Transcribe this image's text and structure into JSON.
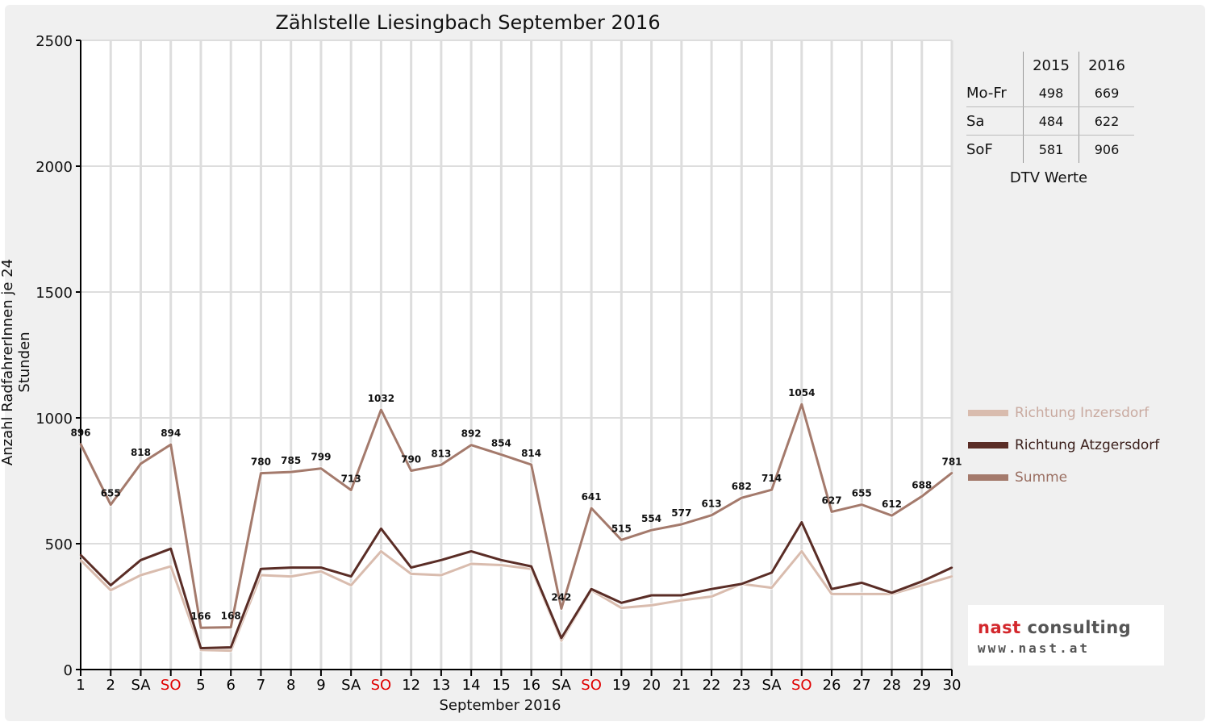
{
  "chart_data": {
    "type": "line",
    "title": "Zählstelle Liesingbach September 2016",
    "xlabel": "September 2016",
    "ylabel": "Anzahl RadfahrerInnen je 24 Stunden",
    "ylim": [
      0,
      2500
    ],
    "yticks": [
      "0",
      "500",
      "1000",
      "1500",
      "2000",
      "2500"
    ],
    "grid": true,
    "categories": [
      "1",
      "2",
      "SA",
      "SO",
      "5",
      "6",
      "7",
      "8",
      "9",
      "SA",
      "SO",
      "12",
      "13",
      "14",
      "15",
      "16",
      "SA",
      "SO",
      "19",
      "20",
      "21",
      "22",
      "23",
      "SA",
      "SO",
      "26",
      "27",
      "28",
      "29",
      "30"
    ],
    "category_colors": [
      "#000000",
      "#000000",
      "#000000",
      "#e00000",
      "#000000",
      "#000000",
      "#000000",
      "#000000",
      "#000000",
      "#000000",
      "#e00000",
      "#000000",
      "#000000",
      "#000000",
      "#000000",
      "#000000",
      "#000000",
      "#e00000",
      "#000000",
      "#000000",
      "#000000",
      "#000000",
      "#000000",
      "#000000",
      "#e00000",
      "#000000",
      "#000000",
      "#000000",
      "#000000",
      "#000000"
    ],
    "legend_position": "right",
    "series": [
      {
        "name": "Richtung Inzersdorf",
        "color": "#d9bcae",
        "values": [
          435,
          315,
          375,
          410,
          78,
          75,
          375,
          370,
          390,
          335,
          470,
          380,
          375,
          420,
          415,
          400,
          115,
          315,
          245,
          255,
          275,
          290,
          340,
          325,
          470,
          300,
          300,
          300,
          335,
          370
        ]
      },
      {
        "name": "Richtung Atzgersdorf",
        "color": "#5a2d26",
        "values": [
          455,
          335,
          435,
          480,
          85,
          88,
          400,
          405,
          405,
          370,
          560,
          405,
          435,
          470,
          435,
          410,
          125,
          320,
          265,
          295,
          295,
          320,
          340,
          385,
          585,
          320,
          345,
          305,
          350,
          405
        ]
      },
      {
        "name": "Summe",
        "color": "#a47a6c",
        "values": [
          896,
          655,
          818,
          894,
          166,
          168,
          780,
          785,
          799,
          713,
          1032,
          790,
          813,
          892,
          854,
          814,
          242,
          641,
          515,
          554,
          577,
          613,
          682,
          714,
          1054,
          627,
          655,
          612,
          688,
          781
        ]
      }
    ],
    "data_labels": [
      "896",
      "655",
      "818",
      "894",
      "166",
      "168",
      "780",
      "785",
      "799",
      "713",
      "1032",
      "790",
      "813",
      "892",
      "854",
      "814",
      "242",
      "641",
      "515",
      "554",
      "577",
      "613",
      "682",
      "714",
      "1054",
      "627",
      "655",
      "612",
      "688",
      "781"
    ]
  },
  "dtv": {
    "headers": [
      "",
      "2015",
      "2016"
    ],
    "rows": [
      {
        "label": "Mo-Fr",
        "y2015": "498",
        "y2016": "669"
      },
      {
        "label": "Sa",
        "y2015": "484",
        "y2016": "622"
      },
      {
        "label": "SoF",
        "y2015": "581",
        "y2016": "906"
      }
    ],
    "caption": "DTV Werte"
  },
  "legend": {
    "items": [
      {
        "label": "Richtung Inzersdorf",
        "color": "#d9bcae",
        "text_color": "#c9aaa0"
      },
      {
        "label": "Richtung Atzgersdorf",
        "color": "#5a2d26",
        "text_color": "#3a1e1a"
      },
      {
        "label": "Summe",
        "color": "#a47a6c",
        "text_color": "#9a6f62"
      }
    ]
  },
  "logo": {
    "name_part1": "nast",
    "name_part2": " consulting",
    "url": "www.nast.at"
  }
}
